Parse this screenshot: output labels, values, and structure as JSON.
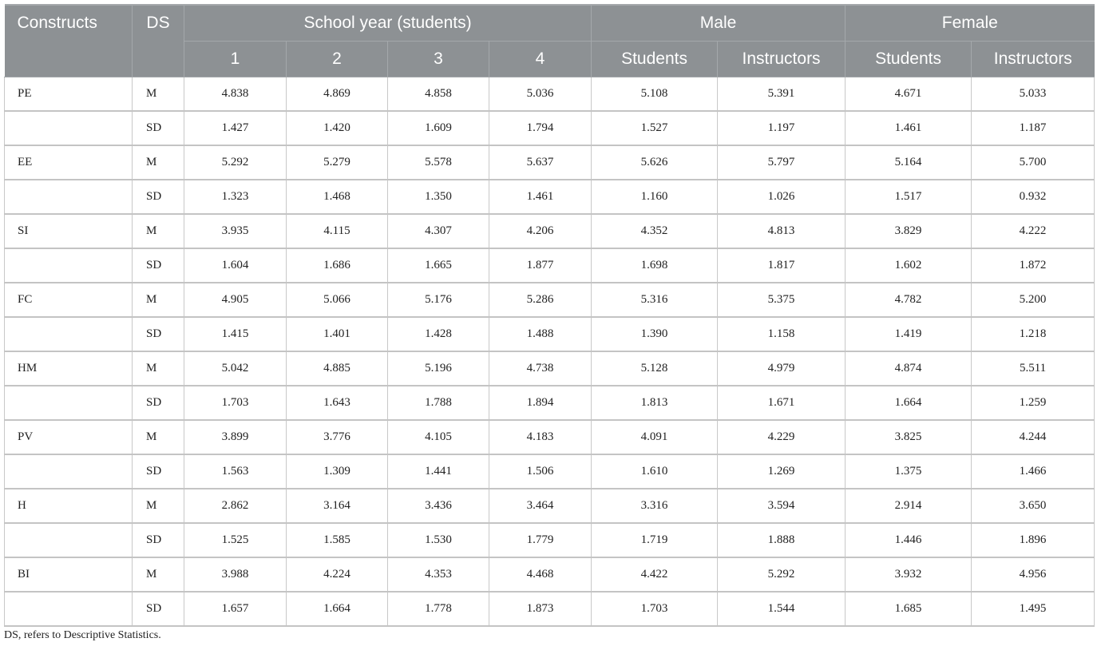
{
  "header": {
    "constructs": "Constructs",
    "ds": "DS",
    "school_year": "School year (students)",
    "male": "Male",
    "female": "Female",
    "sub": [
      "1",
      "2",
      "3",
      "4",
      "Students",
      "Instructors",
      "Students",
      "Instructors"
    ]
  },
  "rows": [
    {
      "construct": "PE",
      "ds": "M",
      "values": [
        "4.838",
        "4.869",
        "4.858",
        "5.036",
        "5.108",
        "5.391",
        "4.671",
        "5.033"
      ]
    },
    {
      "construct": "",
      "ds": "SD",
      "values": [
        "1.427",
        "1.420",
        "1.609",
        "1.794",
        "1.527",
        "1.197",
        "1.461",
        "1.187"
      ]
    },
    {
      "construct": "EE",
      "ds": "M",
      "values": [
        "5.292",
        "5.279",
        "5.578",
        "5.637",
        "5.626",
        "5.797",
        "5.164",
        "5.700"
      ]
    },
    {
      "construct": "",
      "ds": "SD",
      "values": [
        "1.323",
        "1.468",
        "1.350",
        "1.461",
        "1.160",
        "1.026",
        "1.517",
        "0.932"
      ]
    },
    {
      "construct": "SI",
      "ds": "M",
      "values": [
        "3.935",
        "4.115",
        "4.307",
        "4.206",
        "4.352",
        "4.813",
        "3.829",
        "4.222"
      ]
    },
    {
      "construct": "",
      "ds": "SD",
      "values": [
        "1.604",
        "1.686",
        "1.665",
        "1.877",
        "1.698",
        "1.817",
        "1.602",
        "1.872"
      ]
    },
    {
      "construct": "FC",
      "ds": "M",
      "values": [
        "4.905",
        "5.066",
        "5.176",
        "5.286",
        "5.316",
        "5.375",
        "4.782",
        "5.200"
      ]
    },
    {
      "construct": "",
      "ds": "SD",
      "values": [
        "1.415",
        "1.401",
        "1.428",
        "1.488",
        "1.390",
        "1.158",
        "1.419",
        "1.218"
      ]
    },
    {
      "construct": "HM",
      "ds": "M",
      "values": [
        "5.042",
        "4.885",
        "5.196",
        "4.738",
        "5.128",
        "4.979",
        "4.874",
        "5.511"
      ]
    },
    {
      "construct": "",
      "ds": "SD",
      "values": [
        "1.703",
        "1.643",
        "1.788",
        "1.894",
        "1.813",
        "1.671",
        "1.664",
        "1.259"
      ]
    },
    {
      "construct": "PV",
      "ds": "M",
      "values": [
        "3.899",
        "3.776",
        "4.105",
        "4.183",
        "4.091",
        "4.229",
        "3.825",
        "4.244"
      ]
    },
    {
      "construct": "",
      "ds": "SD",
      "values": [
        "1.563",
        "1.309",
        "1.441",
        "1.506",
        "1.610",
        "1.269",
        "1.375",
        "1.466"
      ]
    },
    {
      "construct": "H",
      "ds": "M",
      "values": [
        "2.862",
        "3.164",
        "3.436",
        "3.464",
        "3.316",
        "3.594",
        "2.914",
        "3.650"
      ]
    },
    {
      "construct": "",
      "ds": "SD",
      "values": [
        "1.525",
        "1.585",
        "1.530",
        "1.779",
        "1.719",
        "1.888",
        "1.446",
        "1.896"
      ]
    },
    {
      "construct": "BI",
      "ds": "M",
      "values": [
        "3.988",
        "4.224",
        "4.353",
        "4.468",
        "4.422",
        "5.292",
        "3.932",
        "4.956"
      ]
    },
    {
      "construct": "",
      "ds": "SD",
      "values": [
        "1.657",
        "1.664",
        "1.778",
        "1.873",
        "1.703",
        "1.544",
        "1.685",
        "1.495"
      ]
    }
  ],
  "footnote": "DS, refers to Descriptive Statistics."
}
